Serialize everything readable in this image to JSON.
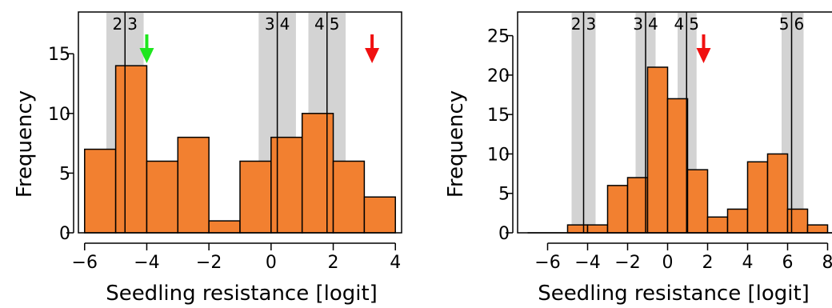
{
  "chart_data": [
    {
      "type": "bar",
      "panel": "left",
      "xlabel": "Seedling resistance [logit]",
      "ylabel": "Frequency",
      "xlim": [
        -6.2,
        4.2
      ],
      "ylim": [
        0,
        18.5
      ],
      "xticks": [
        -6,
        -4,
        -2,
        0,
        2,
        4
      ],
      "yticks": [
        0,
        5,
        10,
        15
      ],
      "bins": [
        {
          "x0": -6,
          "x1": -5,
          "value": 7
        },
        {
          "x0": -5,
          "x1": -4,
          "value": 14
        },
        {
          "x0": -4,
          "x1": -3,
          "value": 6
        },
        {
          "x0": -3,
          "x1": -2,
          "value": 8
        },
        {
          "x0": -2,
          "x1": -1,
          "value": 1
        },
        {
          "x0": -1,
          "x1": 0,
          "value": 6
        },
        {
          "x0": 0,
          "x1": 1,
          "value": 8
        },
        {
          "x0": 1,
          "x1": 2,
          "value": 10
        },
        {
          "x0": 2,
          "x1": 3,
          "value": 6
        },
        {
          "x0": 3,
          "x1": 4,
          "value": 3
        }
      ],
      "thresholds": [
        {
          "x": -4.7,
          "band": [
            -5.3,
            -4.1
          ],
          "left": "2",
          "right": "3"
        },
        {
          "x": 0.2,
          "band": [
            -0.4,
            0.8
          ],
          "left": "3",
          "right": "4"
        },
        {
          "x": 1.8,
          "band": [
            1.2,
            2.4
          ],
          "left": "4",
          "right": "5"
        }
      ],
      "arrows": [
        {
          "x": -4.0,
          "color": "#1ee61e"
        },
        {
          "x": 3.25,
          "color": "#f01010"
        }
      ],
      "bar_color": "#f28030",
      "band_color": "#d3d3d3"
    },
    {
      "type": "bar",
      "panel": "right",
      "xlabel": "Seedling resistance [logit]",
      "ylabel": "Frequency",
      "xlim": [
        -7.5,
        8.5
      ],
      "ylim": [
        0,
        28
      ],
      "xticks": [
        -6,
        -4,
        -2,
        0,
        2,
        4,
        6,
        8
      ],
      "yticks": [
        0,
        5,
        10,
        15,
        20,
        25
      ],
      "bins": [
        {
          "x0": -5,
          "x1": -4,
          "value": 1
        },
        {
          "x0": -4,
          "x1": -3,
          "value": 1
        },
        {
          "x0": -3,
          "x1": -2,
          "value": 6
        },
        {
          "x0": -2,
          "x1": -1,
          "value": 7
        },
        {
          "x0": -1,
          "x1": 0,
          "value": 21
        },
        {
          "x0": 0,
          "x1": 1,
          "value": 17
        },
        {
          "x0": 1,
          "x1": 2,
          "value": 8
        },
        {
          "x0": 2,
          "x1": 3,
          "value": 2
        },
        {
          "x0": 3,
          "x1": 4,
          "value": 3
        },
        {
          "x0": 4,
          "x1": 5,
          "value": 9
        },
        {
          "x0": 5,
          "x1": 6,
          "value": 10
        },
        {
          "x0": 6,
          "x1": 7,
          "value": 3
        },
        {
          "x0": 7,
          "x1": 8,
          "value": 1
        }
      ],
      "thresholds": [
        {
          "x": -4.2,
          "band": [
            -4.8,
            -3.6
          ],
          "left": "2",
          "right": "3"
        },
        {
          "x": -1.1,
          "band": [
            -1.6,
            -0.6
          ],
          "left": "3",
          "right": "4"
        },
        {
          "x": 0.95,
          "band": [
            0.5,
            1.45
          ],
          "left": "4",
          "right": "5"
        },
        {
          "x": 6.2,
          "band": [
            5.7,
            6.8
          ],
          "left": "5",
          "right": "6"
        }
      ],
      "arrows": [
        {
          "x": 1.8,
          "color": "#f01010"
        }
      ],
      "baseline": [
        -7,
        8.5
      ],
      "bar_color": "#f28030",
      "band_color": "#d3d3d3"
    }
  ]
}
